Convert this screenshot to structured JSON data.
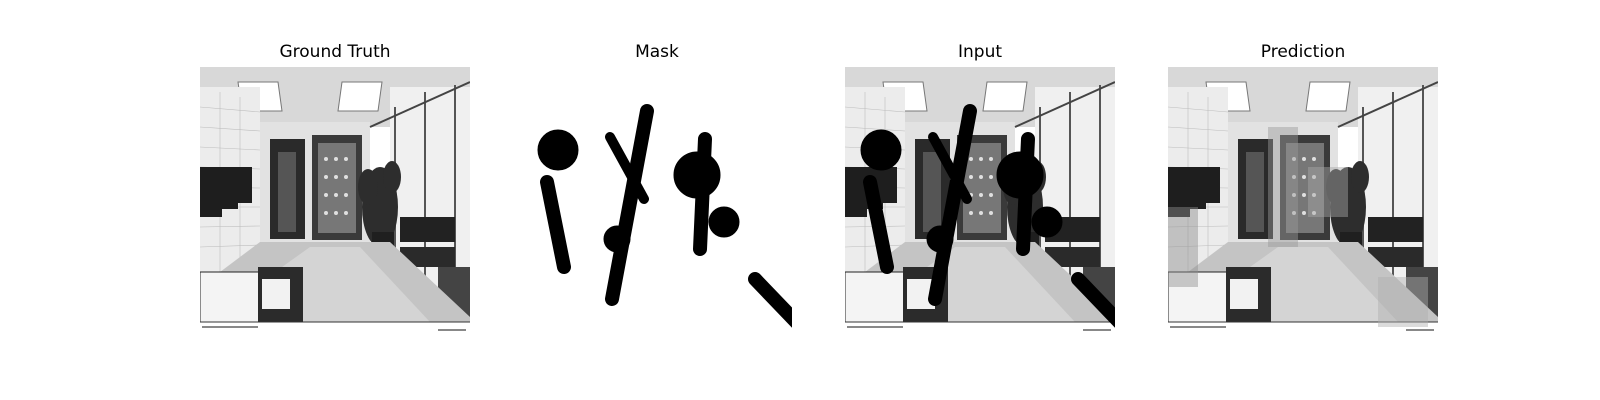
{
  "panels": [
    {
      "id": "ground-truth",
      "title": "Ground Truth",
      "kind": "scene"
    },
    {
      "id": "mask",
      "title": "Mask",
      "kind": "mask"
    },
    {
      "id": "input",
      "title": "Input",
      "kind": "scene-masked"
    },
    {
      "id": "prediction",
      "title": "Prediction",
      "kind": "scene-inpainted"
    }
  ],
  "scene": {
    "description_colors": {
      "wall": "#e6e6e6",
      "floor": "#bdbdbd",
      "ceiling": "#d0d0d0",
      "dark": "#1a1a1a",
      "mask": "#000000"
    }
  }
}
